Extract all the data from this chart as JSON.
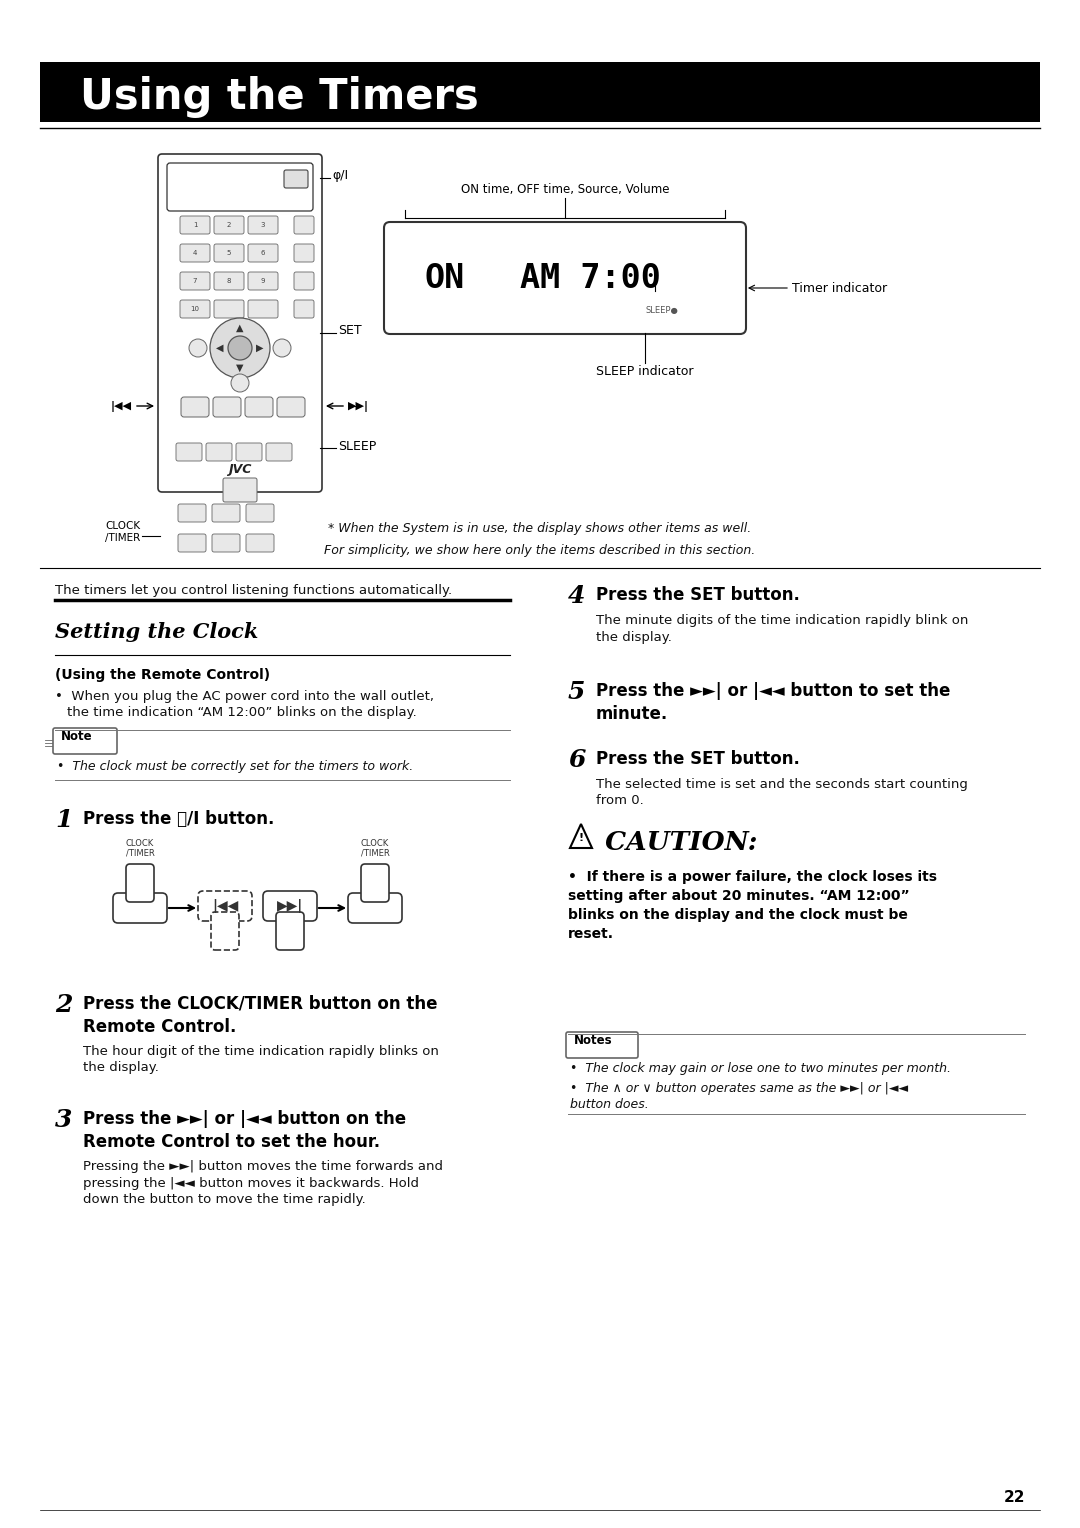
{
  "page_bg": "#ffffff",
  "title_text": "Using the Timers",
  "title_bg": "#000000",
  "title_color": "#ffffff",
  "title_fontsize": 30,
  "subtitle_setting": "Setting the Clock",
  "section_using_remote": "(Using the Remote Control)",
  "bullet_remote": "When you plug the AC power cord into the wall outlet,\nthe time indication “AM 12:00” blinks on the display.",
  "note_text": "The clock must be correctly set for the timers to work.",
  "step1_text": "Press the Ⓘ/I button.",
  "step2_text": "Press the CLOCK/TIMER button on the\nRemote Control.",
  "step2_sub": "The hour digit of the time indication rapidly blinks on\nthe display.",
  "step3_text": "Press the ►►| or |◄◄ button on the\nRemote Control to set the hour.",
  "step3_sub": "Pressing the ►►| button moves the time forwards and\npressing the |◄◄ button moves it backwards. Hold\ndown the button to move the time rapidly.",
  "step4_text": "Press the SET button.",
  "step4_sub": "The minute digits of the time indication rapidly blink on\nthe display.",
  "step5_text": "Press the ►►| or |◄◄ button to set the\nminute.",
  "step6_text": "Press the SET button.",
  "step6_sub": "The selected time is set and the seconds start counting\nfrom 0.",
  "caution_title": " CAUTION:",
  "caution_text": "If there is a power failure, the clock loses its\nsetting after about 20 minutes. “AM 12:00”\nblinks on the display and the clock must be\nreset.",
  "note1": "The clock may gain or lose one to two minutes per month.",
  "note2": "The ∧ or ∨ button operates same as the ►►| or |◄◄\nbutton does.",
  "caption1": "* When the System is in use, the display shows other items as well.",
  "caption2": "For simplicity, we show here only the items described in this section.",
  "label_on_time": "ON time, OFF time, Source, Volume",
  "label_timer": "Timer indicator",
  "label_sleep": "SLEEP indicator",
  "page_number": "22",
  "timers_text": "The timers let you control listening functions automatically."
}
